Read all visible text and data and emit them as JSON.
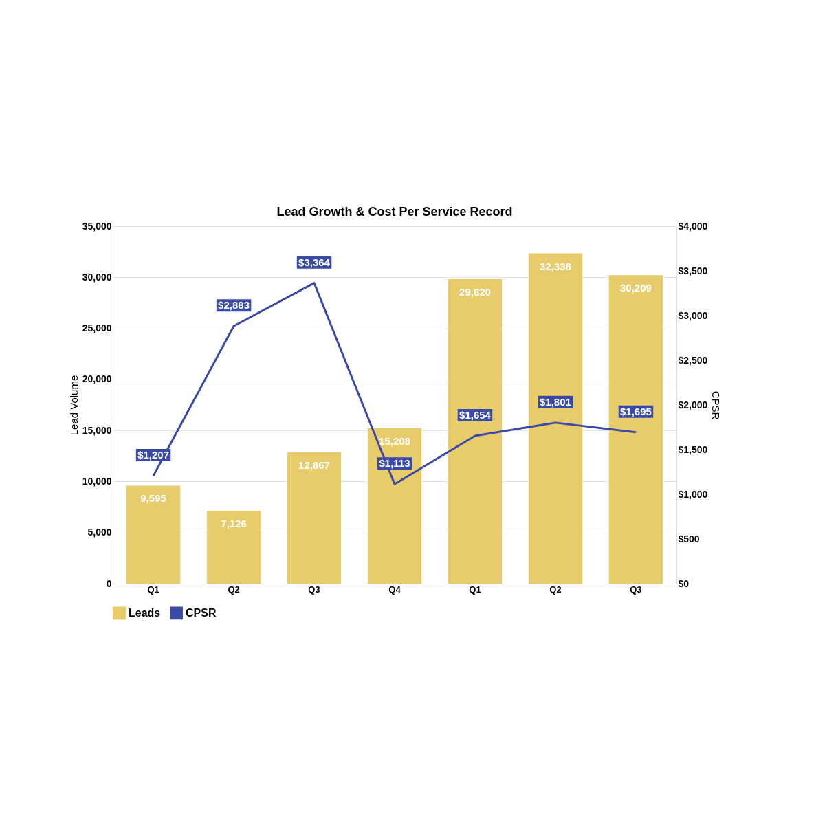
{
  "chart_data": {
    "type": "bar",
    "title": "Lead Growth & Cost Per Service Record",
    "categories": [
      "Q1",
      "Q2",
      "Q3",
      "Q4",
      "Q1",
      "Q2",
      "Q3"
    ],
    "series": [
      {
        "name": "Leads",
        "color": "#e8cc6c",
        "values": [
          9595,
          7126,
          12867,
          15208,
          29820,
          32338,
          30209
        ],
        "value_labels": [
          "9,595",
          "7,126",
          "12,867",
          "15,208",
          "29,820",
          "32,338",
          "30,209"
        ]
      },
      {
        "name": "CPSR",
        "type": "line",
        "axis": "y2",
        "color": "#3a4aa6",
        "values": [
          1207,
          2883,
          3364,
          1113,
          1654,
          1801,
          1695
        ],
        "value_labels": [
          "$1,207",
          "$2,883",
          "$3,364",
          "$1,113",
          "$1,654",
          "$1,801",
          "$1,695"
        ]
      }
    ],
    "ylabel": "Lead Volume",
    "y2label": "CPSR",
    "ylim": [
      0,
      35000
    ],
    "yticks": [
      {
        "value": 0,
        "label": "0"
      },
      {
        "value": 5000,
        "label": "5,000"
      },
      {
        "value": 10000,
        "label": "10,000"
      },
      {
        "value": 15000,
        "label": "15,000"
      },
      {
        "value": 20000,
        "label": "20,000"
      },
      {
        "value": 25000,
        "label": "25,000"
      },
      {
        "value": 30000,
        "label": "30,000"
      },
      {
        "value": 35000,
        "label": "35,000"
      }
    ],
    "y2lim": [
      0,
      4000
    ],
    "y2ticks": [
      {
        "value": 0,
        "label": "$0"
      },
      {
        "value": 500,
        "label": "$500"
      },
      {
        "value": 1000,
        "label": "$1,000"
      },
      {
        "value": 1500,
        "label": "$1,500"
      },
      {
        "value": 2000,
        "label": "$2,000"
      },
      {
        "value": 2500,
        "label": "$2,500"
      },
      {
        "value": 3000,
        "label": "$3,000"
      },
      {
        "value": 3500,
        "label": "$3,500"
      },
      {
        "value": 4000,
        "label": "$4,000"
      }
    ],
    "grid": "y",
    "legend": "bottom",
    "marker": "none",
    "line_style": "solid"
  }
}
